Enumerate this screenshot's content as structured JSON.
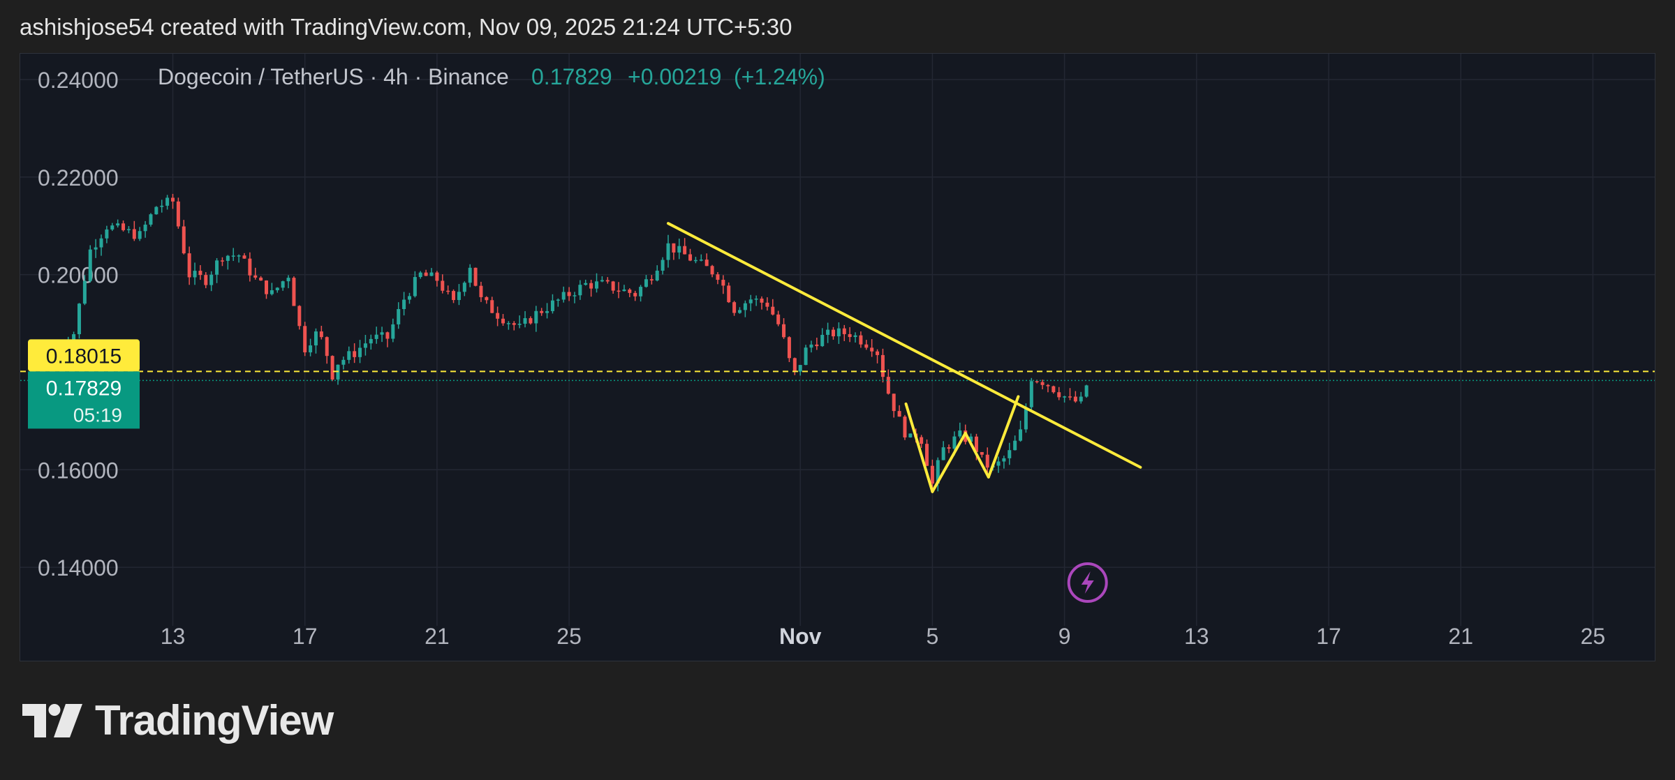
{
  "header": {
    "attribution": "ashishjose54 created with TradingView.com, Nov 09, 2025 21:24 UTC+5:30"
  },
  "brand": {
    "name": "TradingView"
  },
  "colors": {
    "up": "#26a69a",
    "down": "#ef5350",
    "trendline": "#ffeb3b",
    "alert_badge": "#ffeb3b",
    "price_badge": "#089981",
    "lightning": "#ab47bc"
  },
  "chart_data": {
    "type": "candlestick",
    "legend": {
      "symbol": "Dogecoin / TetherUS · 4h · Binance",
      "last": "0.17829",
      "change": "+0.00219",
      "change_pct": "(+1.24%)"
    },
    "y_axis": {
      "ticks": [
        "0.24000",
        "0.22000",
        "0.20000",
        "0.16000",
        "0.14000"
      ],
      "range": [
        0.128,
        0.245
      ]
    },
    "x_axis": {
      "ticks": [
        {
          "label": "13",
          "day": 13,
          "bold": false
        },
        {
          "label": "17",
          "day": 17,
          "bold": false
        },
        {
          "label": "21",
          "day": 21,
          "bold": false
        },
        {
          "label": "25",
          "day": 25,
          "bold": false
        },
        {
          "label": "Nov",
          "day": 32,
          "bold": true
        },
        {
          "label": "5",
          "day": 36,
          "bold": false
        },
        {
          "label": "9",
          "day": 40,
          "bold": false
        },
        {
          "label": "13",
          "day": 44,
          "bold": false
        },
        {
          "label": "17",
          "day": 48,
          "bold": false
        },
        {
          "label": "21",
          "day": 52,
          "bold": false
        },
        {
          "label": "25",
          "day": 56,
          "bold": false
        }
      ]
    },
    "price_path": [
      [
        9.5,
        0.184
      ],
      [
        10.0,
        0.188
      ],
      [
        10.5,
        0.205
      ],
      [
        11.0,
        0.21
      ],
      [
        12.0,
        0.208
      ],
      [
        12.5,
        0.214
      ],
      [
        13.0,
        0.215
      ],
      [
        13.5,
        0.2
      ],
      [
        14.0,
        0.199
      ],
      [
        14.5,
        0.204
      ],
      [
        15.0,
        0.204
      ],
      [
        15.5,
        0.199
      ],
      [
        16.0,
        0.196
      ],
      [
        16.5,
        0.2
      ],
      [
        16.8,
        0.19
      ],
      [
        17.0,
        0.185
      ],
      [
        17.3,
        0.188
      ],
      [
        17.6,
        0.186
      ],
      [
        17.8,
        0.179
      ],
      [
        18.0,
        0.182
      ],
      [
        18.5,
        0.184
      ],
      [
        19.0,
        0.187
      ],
      [
        19.5,
        0.187
      ],
      [
        20.0,
        0.195
      ],
      [
        20.5,
        0.2
      ],
      [
        21.0,
        0.199
      ],
      [
        21.5,
        0.194
      ],
      [
        22.0,
        0.202
      ],
      [
        22.3,
        0.195
      ],
      [
        22.8,
        0.192
      ],
      [
        23.5,
        0.189
      ],
      [
        24.0,
        0.192
      ],
      [
        24.5,
        0.194
      ],
      [
        25.0,
        0.196
      ],
      [
        25.5,
        0.198
      ],
      [
        26.0,
        0.198
      ],
      [
        26.5,
        0.197
      ],
      [
        27.0,
        0.196
      ],
      [
        27.5,
        0.2
      ],
      [
        28.0,
        0.206
      ],
      [
        28.5,
        0.204
      ],
      [
        29.0,
        0.202
      ],
      [
        29.5,
        0.2
      ],
      [
        30.0,
        0.193
      ],
      [
        30.5,
        0.195
      ],
      [
        31.0,
        0.194
      ],
      [
        31.4,
        0.189
      ],
      [
        31.8,
        0.179
      ],
      [
        32.2,
        0.185
      ],
      [
        32.6,
        0.187
      ],
      [
        33.0,
        0.188
      ],
      [
        33.5,
        0.188
      ],
      [
        34.0,
        0.186
      ],
      [
        34.3,
        0.185
      ],
      [
        34.6,
        0.177
      ],
      [
        35.0,
        0.17
      ],
      [
        35.3,
        0.166
      ],
      [
        35.6,
        0.168
      ],
      [
        35.9,
        0.16
      ],
      [
        36.0,
        0.157
      ],
      [
        36.3,
        0.164
      ],
      [
        36.8,
        0.167
      ],
      [
        37.2,
        0.166
      ],
      [
        37.5,
        0.162
      ],
      [
        37.8,
        0.16
      ],
      [
        38.3,
        0.163
      ],
      [
        38.7,
        0.168
      ],
      [
        39.0,
        0.179
      ],
      [
        39.4,
        0.178
      ],
      [
        39.8,
        0.176
      ],
      [
        40.2,
        0.174
      ],
      [
        40.5,
        0.174
      ],
      [
        40.7,
        0.178
      ]
    ],
    "current_price": 0.17829,
    "current_price_countdown": "05:19",
    "alert_price": 0.18015,
    "trendlines": [
      {
        "from": [
          28.0,
          0.2105
        ],
        "to": [
          42.3,
          0.1605
        ]
      },
      {
        "from": [
          35.2,
          0.1735
        ],
        "to": [
          36.0,
          0.1555
        ]
      },
      {
        "from": [
          36.0,
          0.1555
        ],
        "to": [
          37.0,
          0.1675
        ]
      },
      {
        "from": [
          37.0,
          0.1675
        ],
        "to": [
          37.7,
          0.1585
        ]
      },
      {
        "from": [
          37.7,
          0.1585
        ],
        "to": [
          38.6,
          0.175
        ]
      }
    ]
  }
}
